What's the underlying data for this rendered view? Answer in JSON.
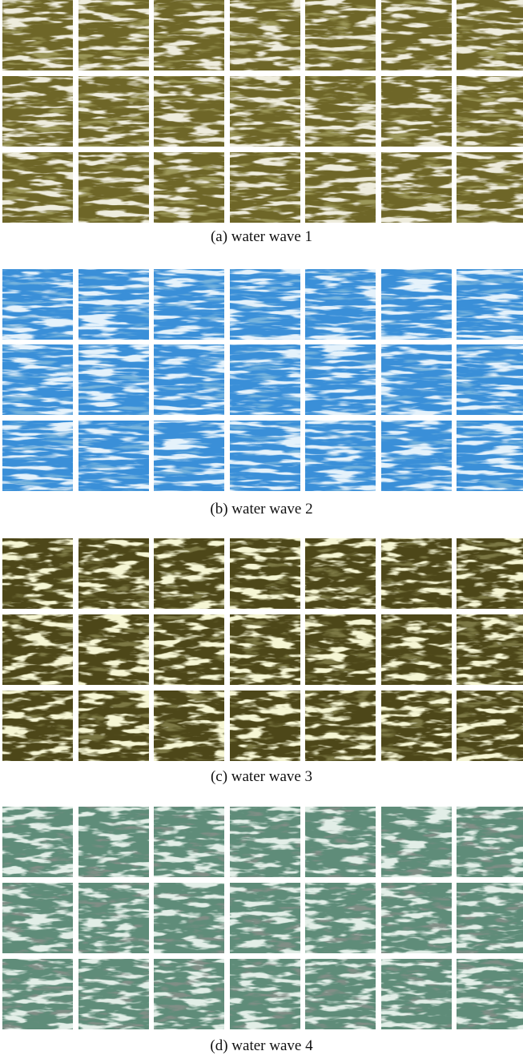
{
  "panels": [
    {
      "caption": "(a) water wave 1"
    },
    {
      "caption": "(b) water wave 2"
    },
    {
      "caption": "(c) water wave 3"
    },
    {
      "caption": "(d) water wave 4"
    }
  ]
}
